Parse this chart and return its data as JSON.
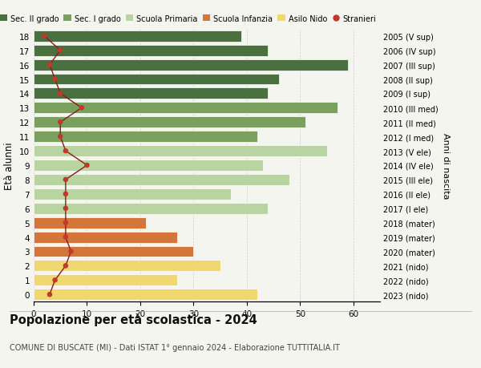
{
  "ages": [
    18,
    17,
    16,
    15,
    14,
    13,
    12,
    11,
    10,
    9,
    8,
    7,
    6,
    5,
    4,
    3,
    2,
    1,
    0
  ],
  "right_labels": [
    "2005 (V sup)",
    "2006 (IV sup)",
    "2007 (III sup)",
    "2008 (II sup)",
    "2009 (I sup)",
    "2010 (III med)",
    "2011 (II med)",
    "2012 (I med)",
    "2013 (V ele)",
    "2014 (IV ele)",
    "2015 (III ele)",
    "2016 (II ele)",
    "2017 (I ele)",
    "2018 (mater)",
    "2019 (mater)",
    "2020 (mater)",
    "2021 (nido)",
    "2022 (nido)",
    "2023 (nido)"
  ],
  "bar_values": [
    39,
    44,
    59,
    46,
    44,
    57,
    51,
    42,
    55,
    43,
    48,
    37,
    44,
    21,
    27,
    30,
    35,
    27,
    42
  ],
  "bar_colors": [
    "#4a7040",
    "#4a7040",
    "#4a7040",
    "#4a7040",
    "#4a7040",
    "#7aa060",
    "#7aa060",
    "#7aa060",
    "#b8d4a0",
    "#b8d4a0",
    "#b8d4a0",
    "#b8d4a0",
    "#b8d4a0",
    "#d4763a",
    "#d4763a",
    "#d4763a",
    "#f0d870",
    "#f0d870",
    "#f0d870"
  ],
  "stranieri_values": [
    2,
    5,
    3,
    4,
    5,
    9,
    5,
    5,
    6,
    10,
    6,
    6,
    6,
    6,
    6,
    7,
    6,
    4,
    3
  ],
  "title": "Popolazione per età scolastica - 2024",
  "subtitle": "COMUNE DI BUSCATE (MI) - Dati ISTAT 1° gennaio 2024 - Elaborazione TUTTITALIA.IT",
  "ylabel": "Età alunni",
  "right_ylabel": "Anni di nascita",
  "xlim": [
    0,
    65
  ],
  "xticks": [
    0,
    10,
    20,
    30,
    40,
    50,
    60
  ],
  "legend_labels": [
    "Sec. II grado",
    "Sec. I grado",
    "Scuola Primaria",
    "Scuola Infanzia",
    "Asilo Nido",
    "Stranieri"
  ],
  "legend_colors": [
    "#4a7040",
    "#7aa060",
    "#b8d4a0",
    "#d4763a",
    "#f0d870",
    "#c0392b"
  ],
  "bg_color": "#f5f5f0",
  "line_color": "#8b1a1a",
  "dot_color": "#c0392b"
}
